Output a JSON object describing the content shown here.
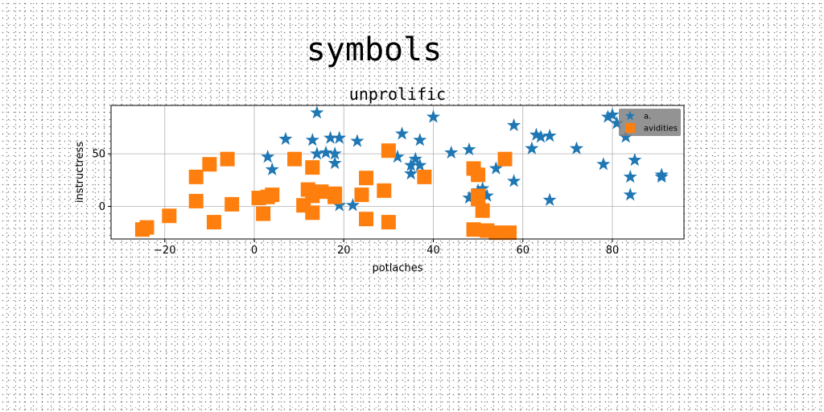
{
  "figure": {
    "suptitle": "symbols"
  },
  "chart_data": {
    "type": "scatter",
    "title": "unprolific",
    "xlabel": "potlaches",
    "ylabel": "instructress",
    "xlim": [
      -32,
      96
    ],
    "ylim": [
      -31,
      96
    ],
    "xticks": [
      -20,
      0,
      20,
      40,
      60,
      80
    ],
    "xtick_labels": [
      "−20",
      "0",
      "20",
      "40",
      "60",
      "80"
    ],
    "yticks": [
      0,
      50
    ],
    "ytick_labels": [
      "0",
      "50"
    ],
    "grid": true,
    "legend_position": "top-right",
    "series": [
      {
        "name": "a.",
        "marker": "star",
        "color": "#1f77b4",
        "points": [
          [
            14,
            89
          ],
          [
            7,
            64
          ],
          [
            13,
            63
          ],
          [
            17,
            65
          ],
          [
            19,
            65
          ],
          [
            23,
            62
          ],
          [
            33,
            69
          ],
          [
            37,
            63
          ],
          [
            40,
            85
          ],
          [
            3,
            47
          ],
          [
            4,
            35
          ],
          [
            14,
            50
          ],
          [
            16,
            51
          ],
          [
            18,
            50
          ],
          [
            18,
            41
          ],
          [
            36,
            45
          ],
          [
            35,
            39
          ],
          [
            37,
            39
          ],
          [
            35,
            31
          ],
          [
            32,
            47
          ],
          [
            19,
            1
          ],
          [
            22,
            1
          ],
          [
            44,
            51
          ],
          [
            48,
            54
          ],
          [
            48,
            8
          ],
          [
            49,
            11
          ],
          [
            50,
            15
          ],
          [
            50,
            12
          ],
          [
            52,
            10
          ],
          [
            51,
            17
          ],
          [
            54,
            36
          ],
          [
            56,
            44
          ],
          [
            58,
            24
          ],
          [
            58,
            77
          ],
          [
            62,
            55
          ],
          [
            63,
            68
          ],
          [
            64,
            66
          ],
          [
            66,
            67
          ],
          [
            66,
            6
          ],
          [
            72,
            55
          ],
          [
            78,
            40
          ],
          [
            79,
            85
          ],
          [
            80,
            87
          ],
          [
            81,
            79
          ],
          [
            83,
            66
          ],
          [
            84,
            28
          ],
          [
            84,
            11
          ],
          [
            85,
            44
          ],
          [
            91,
            30
          ],
          [
            91,
            28
          ]
        ]
      },
      {
        "name": "avidities",
        "marker": "square",
        "color": "#ff7f0e",
        "points": [
          [
            -25,
            -22
          ],
          [
            -24,
            -20
          ],
          [
            -19,
            -9
          ],
          [
            -13,
            28
          ],
          [
            -13,
            5
          ],
          [
            -10,
            40
          ],
          [
            -9,
            -15
          ],
          [
            -6,
            45
          ],
          [
            -5,
            2
          ],
          [
            1,
            8
          ],
          [
            2,
            -7
          ],
          [
            3,
            9
          ],
          [
            4,
            11
          ],
          [
            9,
            45
          ],
          [
            11,
            1
          ],
          [
            12,
            16
          ],
          [
            13,
            37
          ],
          [
            13,
            -6
          ],
          [
            13,
            10
          ],
          [
            15,
            14
          ],
          [
            18,
            12
          ],
          [
            18,
            9
          ],
          [
            24,
            11
          ],
          [
            25,
            27
          ],
          [
            25,
            -12
          ],
          [
            29,
            15
          ],
          [
            30,
            53
          ],
          [
            30,
            -15
          ],
          [
            38,
            28
          ],
          [
            49,
            36
          ],
          [
            49,
            -22
          ],
          [
            50,
            30
          ],
          [
            50,
            7
          ],
          [
            50,
            10
          ],
          [
            51,
            -4
          ],
          [
            52,
            -23
          ],
          [
            54,
            -25
          ],
          [
            56,
            45
          ],
          [
            57,
            -25
          ]
        ]
      }
    ]
  }
}
